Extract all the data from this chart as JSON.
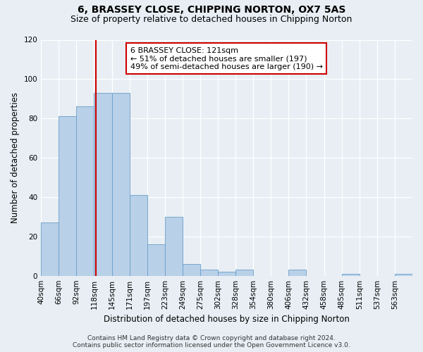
{
  "title1": "6, BRASSEY CLOSE, CHIPPING NORTON, OX7 5AS",
  "title2": "Size of property relative to detached houses in Chipping Norton",
  "xlabel": "Distribution of detached houses by size in Chipping Norton",
  "ylabel": "Number of detached properties",
  "footer1": "Contains HM Land Registry data © Crown copyright and database right 2024.",
  "footer2": "Contains public sector information licensed under the Open Government Licence v3.0.",
  "annotation_line1": "6 BRASSEY CLOSE: 121sqm",
  "annotation_line2": "← 51% of detached houses are smaller (197)",
  "annotation_line3": "49% of semi-detached houses are larger (190) →",
  "bar_heights": [
    27,
    81,
    86,
    93,
    93,
    41,
    16,
    30,
    6,
    3,
    2,
    3,
    0,
    0,
    3,
    0,
    0,
    1,
    0,
    0,
    1
  ],
  "x_labels": [
    "40sqm",
    "66sqm",
    "92sqm",
    "118sqm",
    "145sqm",
    "171sqm",
    "197sqm",
    "223sqm",
    "249sqm",
    "275sqm",
    "302sqm",
    "328sqm",
    "354sqm",
    "380sqm",
    "406sqm",
    "432sqm",
    "458sqm",
    "485sqm",
    "511sqm",
    "537sqm",
    "563sqm"
  ],
  "bar_color": "#b8d0e8",
  "bar_edge_color": "#6a9fc8",
  "vline_color": "#cc0000",
  "vline_x": 3.12,
  "ylim": [
    0,
    120
  ],
  "yticks": [
    0,
    20,
    40,
    60,
    80,
    100,
    120
  ],
  "bg_color": "#e8eef4",
  "ann_facecolor": "#ffffff",
  "ann_edgecolor": "#cc0000",
  "title1_fontsize": 10,
  "title2_fontsize": 9,
  "xlabel_fontsize": 8.5,
  "ylabel_fontsize": 8.5,
  "tick_fontsize": 7.5,
  "ann_fontsize": 8,
  "footer_fontsize": 6.5
}
